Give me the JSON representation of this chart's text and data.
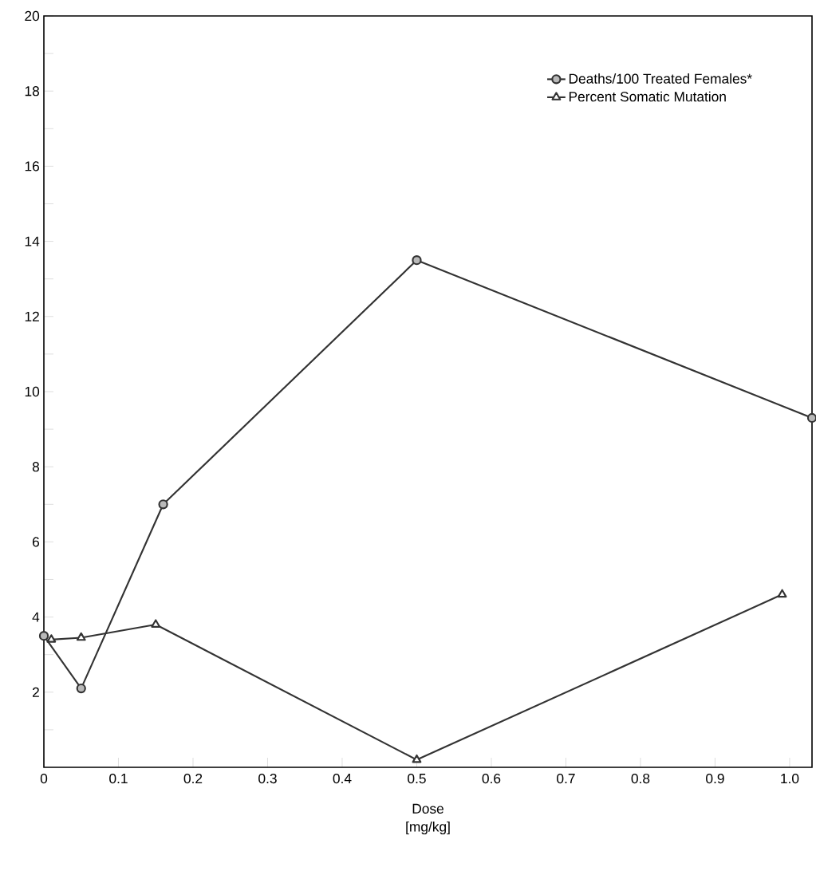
{
  "chart_data": {
    "type": "line",
    "xlabel": "Dose [mg/kg]",
    "xlim": [
      0,
      1.03
    ],
    "ylim": [
      0,
      20
    ],
    "xticks": [
      0,
      0.1,
      0.2,
      0.3,
      0.4,
      0.5,
      0.6,
      0.7,
      0.8,
      0.9,
      {
        "value": 1,
        "label": "1.0"
      }
    ],
    "yticks": [
      {
        "value": 1,
        "label": null
      },
      2,
      {
        "value": 3,
        "label": null
      },
      4,
      {
        "value": 5,
        "label": null
      },
      6,
      {
        "value": 7,
        "label": null
      },
      8,
      {
        "value": 9,
        "label": null
      },
      10,
      {
        "value": 11,
        "label": null
      },
      12,
      {
        "value": 13,
        "label": null
      },
      14,
      {
        "value": 15,
        "label": null
      },
      16,
      {
        "value": 17,
        "label": null
      },
      18,
      {
        "value": 19,
        "label": null
      },
      20
    ],
    "legend": "top right",
    "grid": false,
    "line_style": "solid",
    "series": [
      {
        "name": "Deaths/100 Treated Females*",
        "color": "#333333",
        "marker": "circle",
        "x": [
          0,
          0.05,
          0.16,
          0.5,
          1.03
        ],
        "values": [
          3.5,
          2.1,
          7.0,
          13.5,
          9.3
        ]
      },
      {
        "name": "Percent Somatic Mutation",
        "color": "#333333",
        "marker": "triangle",
        "x": [
          0.01,
          0.05,
          0.15,
          0.5,
          0.99
        ],
        "values": [
          3.4,
          3.45,
          3.8,
          0.2,
          4.6
        ]
      }
    ]
  }
}
